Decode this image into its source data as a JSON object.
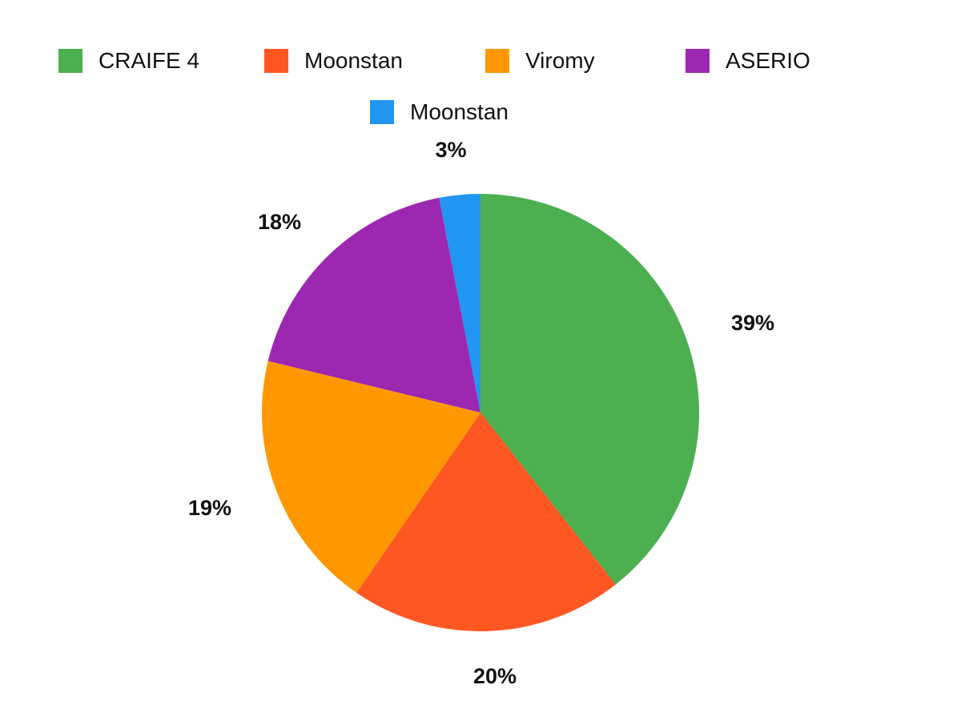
{
  "chart_data": {
    "type": "pie",
    "title": "",
    "categories": [
      "CRAIFE 4",
      "Moonstan",
      "Viromy",
      "ASERIO",
      "Moonstan"
    ],
    "values": [
      39,
      20,
      19,
      18,
      3
    ],
    "labels": [
      "39%",
      "20%",
      "19%",
      "18%",
      "3%"
    ],
    "colors": [
      "#4caf50",
      "#ff5722",
      "#ff9800",
      "#9c27b0",
      "#2196f3"
    ],
    "legend_position": "top",
    "start_angle": "12 o'clock, clockwise"
  },
  "legend": [
    {
      "label": "CRAIFE 4",
      "color": "#4caf50"
    },
    {
      "label": "Moonstan",
      "color": "#ff5722"
    },
    {
      "label": "Viromy",
      "color": "#ff9800"
    },
    {
      "label": "ASERIO",
      "color": "#9c27b0"
    },
    {
      "label": "Moonstan",
      "color": "#2196f3"
    }
  ]
}
